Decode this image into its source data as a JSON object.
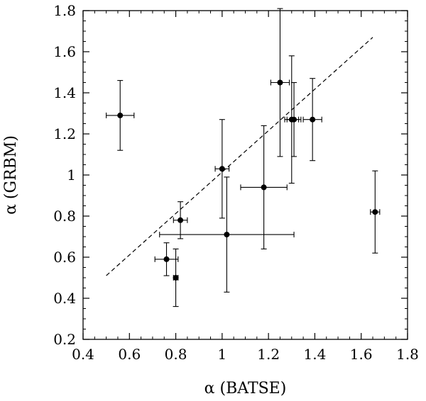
{
  "chart_data": {
    "type": "scatter",
    "title": "",
    "xlabel": "α (BATSE)",
    "ylabel": "α (GRBM)",
    "xlim": [
      0.4,
      1.8
    ],
    "ylim": [
      0.2,
      1.8
    ],
    "x_ticks": [
      0.4,
      0.6,
      0.8,
      1.0,
      1.2,
      1.4,
      1.6,
      1.8
    ],
    "x_tick_labels": [
      "0.4",
      "0.6",
      "0.8",
      "1",
      "1.2",
      "1.4",
      "1.6",
      "1.8"
    ],
    "y_ticks": [
      0.2,
      0.4,
      0.6,
      0.8,
      1.0,
      1.2,
      1.4,
      1.6,
      1.8
    ],
    "y_tick_labels": [
      "0.2",
      "0.4",
      "0.6",
      "0.8",
      "1",
      "1.2",
      "1.4",
      "1.6",
      "1.8"
    ],
    "grid": false,
    "points": [
      {
        "x": 0.56,
        "y": 1.29,
        "xerr": 0.06,
        "yerr": 0.17
      },
      {
        "x": 0.76,
        "y": 0.59,
        "xerr": 0.05,
        "yerr": 0.08
      },
      {
        "x": 0.8,
        "y": 0.5,
        "xerr": 0.01,
        "yerr": 0.14
      },
      {
        "x": 0.82,
        "y": 0.78,
        "xerr": 0.03,
        "yerr": 0.09
      },
      {
        "x": 1.0,
        "y": 1.03,
        "xerr": 0.03,
        "yerr": 0.24
      },
      {
        "x": 1.02,
        "y": 0.71,
        "xerr": 0.29,
        "yerr": 0.28
      },
      {
        "x": 1.18,
        "y": 0.94,
        "xerr": 0.1,
        "yerr": 0.3
      },
      {
        "x": 1.25,
        "y": 1.45,
        "xerr": 0.04,
        "yerr": 0.36
      },
      {
        "x": 1.3,
        "y": 1.27,
        "xerr": 0.03,
        "yerr": 0.31
      },
      {
        "x": 1.31,
        "y": 1.27,
        "xerr": 0.03,
        "yerr": 0.18
      },
      {
        "x": 1.39,
        "y": 1.27,
        "xerr": 0.04,
        "yerr": 0.2
      },
      {
        "x": 1.66,
        "y": 0.82,
        "xerr": 0.02,
        "yerr": 0.2
      }
    ],
    "reference_line": {
      "style": "dashed",
      "x": [
        0.5,
        1.65
      ],
      "y": [
        0.51,
        1.67
      ]
    }
  }
}
